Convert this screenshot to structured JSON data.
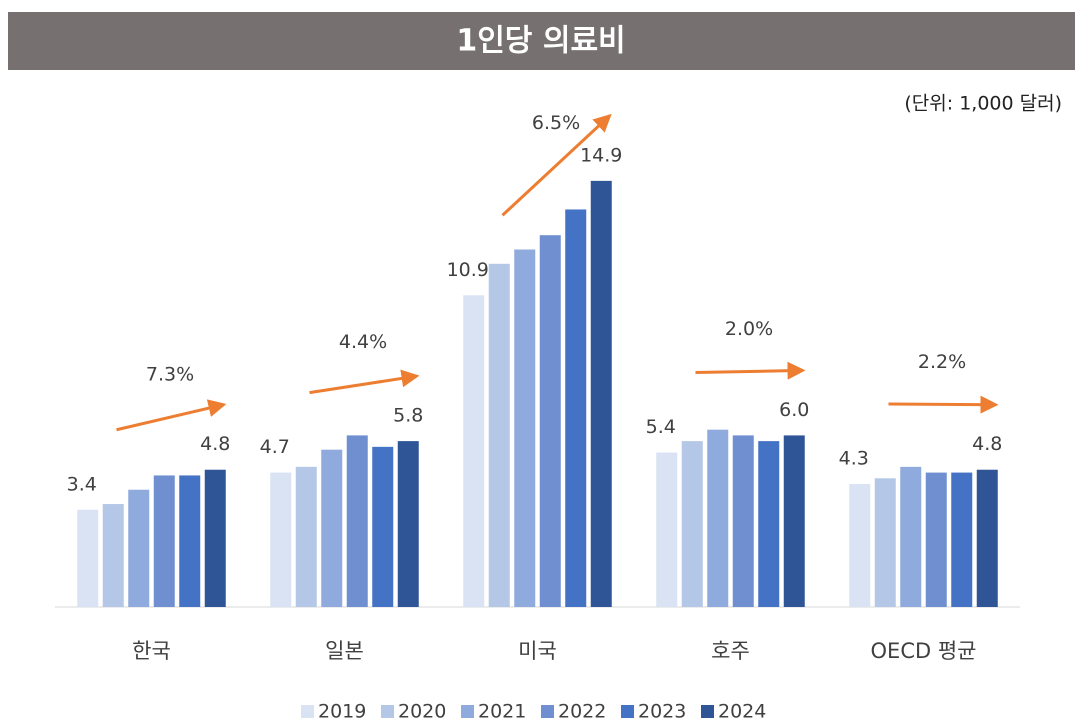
{
  "chart_data": {
    "type": "bar",
    "title": "1인당 의료비",
    "unit_note": "(단위: 1,000 달러)",
    "categories": [
      "한국",
      "일본",
      "미국",
      "호주",
      "OECD 평균"
    ],
    "annotations": [
      "7.3%",
      "4.4%",
      "6.5%",
      "2.0%",
      "2.2%"
    ],
    "annotation_color": "#ed7d31",
    "series": [
      {
        "name": "2019",
        "color": "#dae3f3",
        "values": [
          3.4,
          4.7,
          10.9,
          5.4,
          4.3
        ],
        "value_labels": [
          "3.4",
          "4.7",
          "10.9",
          "5.4",
          "4.3"
        ]
      },
      {
        "name": "2020",
        "color": "#b4c7e7",
        "values": [
          3.6,
          4.9,
          12.0,
          5.8,
          4.5
        ]
      },
      {
        "name": "2021",
        "color": "#8faadc",
        "values": [
          4.1,
          5.5,
          12.5,
          6.2,
          4.9
        ]
      },
      {
        "name": "2022",
        "color": "#6f8fd0",
        "values": [
          4.6,
          6.0,
          13.0,
          6.0,
          4.7
        ]
      },
      {
        "name": "2023",
        "color": "#4472c4",
        "values": [
          4.6,
          5.6,
          13.9,
          5.8,
          4.7
        ]
      },
      {
        "name": "2024",
        "color": "#2f5597",
        "values": [
          4.8,
          5.8,
          14.9,
          6.0,
          4.8
        ],
        "value_labels": [
          "4.8",
          "5.8",
          "14.9",
          "6.0",
          "4.8"
        ]
      }
    ],
    "ylim": [
      0,
      16
    ],
    "legend": "bottom"
  }
}
